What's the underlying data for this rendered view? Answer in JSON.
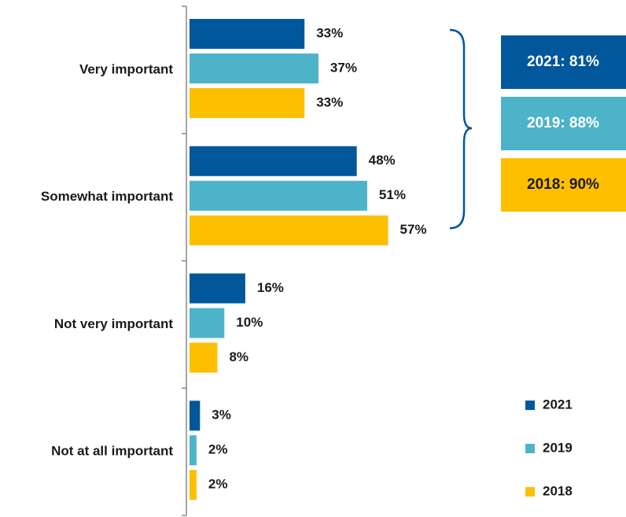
{
  "chart_data": {
    "type": "bar",
    "orientation": "horizontal",
    "categories": [
      "Very important",
      "Somewhat important",
      "Not very important",
      "Not at all important"
    ],
    "series": [
      {
        "name": "2021",
        "color": "#00579c",
        "values": [
          33,
          48,
          16,
          3
        ],
        "value_labels": [
          "33%",
          "48%",
          "16%",
          "3%"
        ]
      },
      {
        "name": "2019",
        "color": "#4db3c8",
        "values": [
          37,
          51,
          10,
          2
        ],
        "value_labels": [
          "37%",
          "51%",
          "10%",
          "2%"
        ]
      },
      {
        "name": "2018",
        "color": "#fdbf00",
        "values": [
          33,
          57,
          8,
          2
        ],
        "value_labels": [
          "33%",
          "57%",
          "8%",
          "2%"
        ]
      }
    ],
    "annotations": [
      "2021: 81%",
      "2019: 88%",
      "2018: 90%"
    ],
    "legend": "bottom-right"
  }
}
